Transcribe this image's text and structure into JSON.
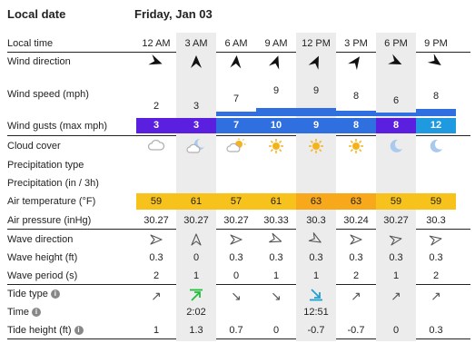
{
  "header": {
    "left_title": "Local date",
    "date": "Friday, Jan 03"
  },
  "rows": {
    "local_time": "Local time",
    "wind_direction": "Wind direction",
    "wind_speed": "Wind speed (mph)",
    "wind_gusts": "Wind gusts (max mph)",
    "cloud_cover": "Cloud cover",
    "precip_type": "Precipitation type",
    "precip": "Precipitation (in / 3h)",
    "air_temp": "Air temperature (°F)",
    "air_pressure": "Air pressure (inHg)",
    "wave_direction": "Wave direction",
    "wave_height": "Wave height (ft)",
    "wave_period": "Wave period (s)",
    "tide_type": "Tide type",
    "time": "Time",
    "tide_height": "Tide height (ft)"
  },
  "info_glyph": "i",
  "columns": [
    {
      "time": "12 AM",
      "wind_dir": "➤",
      "wind_rot": 200,
      "wind_speed": "2",
      "gust": "3",
      "gust_color": "#5b1fe0",
      "cloud": "cloudy",
      "temp": "59",
      "temp_color": "#f7c21b",
      "pressure": "30.27",
      "wave_rot": 180,
      "wave_height": "0.3",
      "wave_period": "2",
      "tide_arrow": "↗",
      "tide_time": "",
      "tide_height": "1",
      "bar": 0,
      "shaded": false
    },
    {
      "time": "3 AM",
      "wind_dir": "➤",
      "wind_rot": 90,
      "wind_speed": "3",
      "gust": "3",
      "gust_color": "#5b1fe0",
      "cloud": "partly-night",
      "temp": "61",
      "temp_color": "#f7c21b",
      "pressure": "30.27",
      "wave_rot": 90,
      "wave_height": "0",
      "wave_period": "1",
      "tide_arrow": "high",
      "tide_time": "2:02",
      "tide_height": "1.3",
      "bar": 0,
      "shaded": true
    },
    {
      "time": "6 AM",
      "wind_dir": "➤",
      "wind_rot": 95,
      "wind_speed": "7",
      "gust": "7",
      "gust_color": "#2f6fe0",
      "cloud": "partly-day",
      "temp": "57",
      "temp_color": "#f7c21b",
      "pressure": "30.27",
      "wave_rot": 180,
      "wave_height": "0.3",
      "wave_period": "0",
      "tide_arrow": "↘",
      "tide_time": "",
      "tide_height": "0.7",
      "bar": 5,
      "shaded": false
    },
    {
      "time": "9 AM",
      "wind_dir": "➤",
      "wind_rot": 110,
      "wind_speed": "9",
      "gust": "10",
      "gust_color": "#2f6fe0",
      "cloud": "sun",
      "temp": "61",
      "temp_color": "#f7c21b",
      "pressure": "30.33",
      "wave_rot": 200,
      "wave_height": "0.3",
      "wave_period": "1",
      "tide_arrow": "↘",
      "tide_time": "",
      "tide_height": "0",
      "bar": 9,
      "shaded": false
    },
    {
      "time": "12 PM",
      "wind_dir": "➤",
      "wind_rot": 115,
      "wind_speed": "9",
      "gust": "9",
      "gust_color": "#2f6fe0",
      "cloud": "sun",
      "temp": "63",
      "temp_color": "#f7a81b",
      "pressure": "30.3",
      "wave_rot": 210,
      "wave_height": "0.3",
      "wave_period": "1",
      "tide_arrow": "low",
      "tide_time": "12:51",
      "tide_height": "-0.7",
      "bar": 9,
      "shaded": true
    },
    {
      "time": "3 PM",
      "wind_dir": "➤",
      "wind_rot": 125,
      "wind_speed": "8",
      "gust": "8",
      "gust_color": "#2f6fe0",
      "cloud": "sun",
      "temp": "63",
      "temp_color": "#f7a81b",
      "pressure": "30.24",
      "wave_rot": 180,
      "wave_height": "0.3",
      "wave_period": "2",
      "tide_arrow": "↗",
      "tide_time": "",
      "tide_height": "-0.7",
      "bar": 7,
      "shaded": false
    },
    {
      "time": "6 PM",
      "wind_dir": "➤",
      "wind_rot": 205,
      "wind_speed": "6",
      "gust": "8",
      "gust_color": "#5b1fe0",
      "cloud": "moon",
      "temp": "59",
      "temp_color": "#f7c21b",
      "pressure": "30.27",
      "wave_rot": 170,
      "wave_height": "0.3",
      "wave_period": "1",
      "tide_arrow": "↗",
      "tide_time": "",
      "tide_height": "0",
      "bar": 4,
      "shaded": true
    },
    {
      "time": "9 PM",
      "wind_dir": "➤",
      "wind_rot": 215,
      "wind_speed": "8",
      "gust": "12",
      "gust_color": "#1f9ae0",
      "cloud": "moon",
      "temp": "59",
      "temp_color": "#f7c21b",
      "pressure": "30.3",
      "wave_rot": 170,
      "wave_height": "0.3",
      "wave_period": "2",
      "tide_arrow": "↗",
      "tide_time": "",
      "tide_height": "0.3",
      "bar": 7,
      "shaded": false
    }
  ],
  "colors": {
    "wind_bar": "#2f6fe0",
    "tide_high": "#1fbf3a",
    "tide_low": "#1fa0d0",
    "sun": "#f7b21b",
    "moon": "#a9c9ee",
    "cloud": "#b0b0b0"
  }
}
